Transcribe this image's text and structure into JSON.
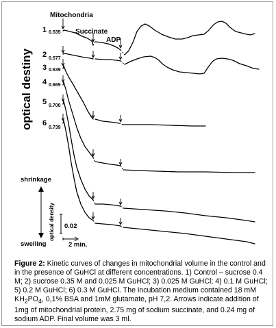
{
  "figure": {
    "ylabel": "optical destiny",
    "event_labels": {
      "mitochondria": "Mitochondria",
      "succinate": "Succinate",
      "adp": "ADP"
    },
    "traces": [
      {
        "number": "1",
        "start_value": "0.535"
      },
      {
        "number": "2",
        "start_value": "0.577"
      },
      {
        "number": "3",
        "start_value": "0.639"
      },
      {
        "number": "4",
        "start_value": "0.669"
      },
      {
        "number": "5",
        "start_value": "0.700"
      },
      {
        "number": "6",
        "start_value": "0.739"
      }
    ],
    "scale": {
      "shrinkage": "shrinkage",
      "swelling": "swelling",
      "axis_label": "optical density",
      "od_bar": "0.02",
      "time_bar": "2 min."
    }
  },
  "caption": {
    "label": "Figure 2:",
    "text_part1": " Kinetic curves of changes in mitochondrial volume in the control and in the presence of GuHCl at different concentrations. 1) Control – sucrose 0.4 M; 2) sucrose 0.35 M and 0.025 M GuHCl; 3) 0.025 M GuHCl; 4) 0.1 M GuHCl; 5) 0.2 M GuHCl; 6) 0.3 M GuHCl. The incubation medium contained 18 mM KH",
    "sub_2": "2",
    "po": "PO",
    "sub_4": "4",
    "text_part2": ", 0,1% BSA and 1mM glutamate, pH 7,2. Arrows indicate addition of 1mg of mitochondrial protein, 2.75 mg of sodium succinate, and 0.24 mg of sodium ADP. Final volume was 3 ml."
  }
}
